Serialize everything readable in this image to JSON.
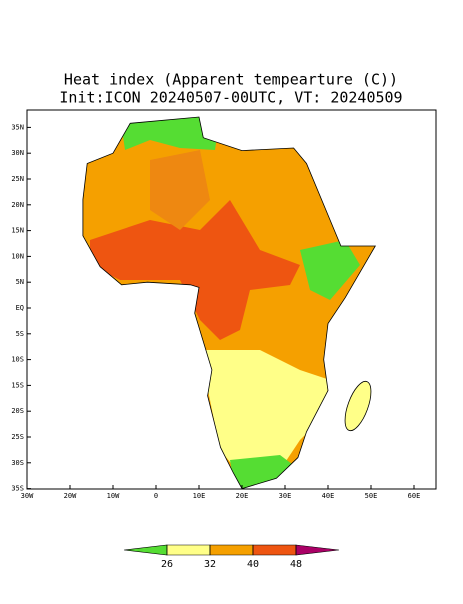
{
  "map": {
    "title": "Heat index (Apparent tempearture (C))",
    "subtitle": "Init:ICON 20240507-00UTC, VT: 20240509",
    "lon_ticks": [
      {
        "value": -30,
        "label": "30W"
      },
      {
        "value": -20,
        "label": "20W"
      },
      {
        "value": -10,
        "label": "10W"
      },
      {
        "value": 0,
        "label": "0"
      },
      {
        "value": 10,
        "label": "10E"
      },
      {
        "value": 20,
        "label": "20E"
      },
      {
        "value": 30,
        "label": "30E"
      },
      {
        "value": 40,
        "label": "40E"
      },
      {
        "value": 50,
        "label": "50E"
      },
      {
        "value": 60,
        "label": "60E"
      }
    ],
    "lat_ticks": [
      {
        "value": 35,
        "label": "35N"
      },
      {
        "value": 30,
        "label": "30N"
      },
      {
        "value": 25,
        "label": "25N"
      },
      {
        "value": 20,
        "label": "20N"
      },
      {
        "value": 15,
        "label": "15N"
      },
      {
        "value": 10,
        "label": "10N"
      },
      {
        "value": 5,
        "label": "5N"
      },
      {
        "value": 0,
        "label": "EQ"
      },
      {
        "value": -5,
        "label": "5S"
      },
      {
        "value": -10,
        "label": "10S"
      },
      {
        "value": -15,
        "label": "15S"
      },
      {
        "value": -20,
        "label": "20S"
      },
      {
        "value": -25,
        "label": "25S"
      },
      {
        "value": -30,
        "label": "30S"
      },
      {
        "value": -35,
        "label": "35S"
      }
    ],
    "colorbar": {
      "levels": [
        26,
        32,
        40,
        48
      ],
      "colors": [
        "#55dd33",
        "#ffff88",
        "#f5a000",
        "#ee5511",
        "#aa0066"
      ]
    }
  }
}
